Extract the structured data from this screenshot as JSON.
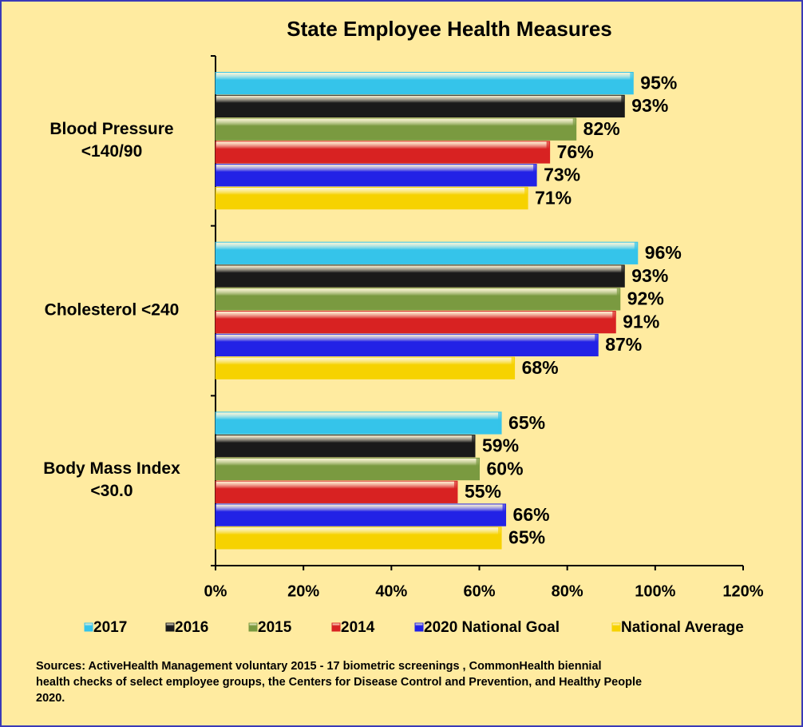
{
  "chart_data": {
    "type": "bar",
    "orientation": "horizontal",
    "title": "State Employee  Health Measures",
    "categories": [
      [
        "Blood Pressure",
        "<140/90"
      ],
      [
        "Cholesterol  <240"
      ],
      [
        "Body Mass Index",
        "<30.0"
      ]
    ],
    "series": [
      {
        "name": "2017",
        "color": "#35c4ea",
        "values": [
          95,
          96,
          65
        ],
        "value_labels": [
          "95%",
          "96%",
          "65%"
        ]
      },
      {
        "name": "2016",
        "color": "#1a1a1a",
        "values": [
          93,
          93,
          59
        ],
        "value_labels": [
          "93%",
          "93%",
          "59%"
        ]
      },
      {
        "name": "2015",
        "color": "#7a9a40",
        "values": [
          82,
          92,
          60
        ],
        "value_labels": [
          "82%",
          "92%",
          "60%"
        ]
      },
      {
        "name": "2014",
        "color": "#d82222",
        "values": [
          76,
          91,
          55
        ],
        "value_labels": [
          "76%",
          "91%",
          "55%"
        ]
      },
      {
        "name": "2020 National Goal",
        "color": "#2222e6",
        "values": [
          73,
          87,
          66
        ],
        "value_labels": [
          "73%",
          "87%",
          "66%"
        ]
      },
      {
        "name": "National Average",
        "color": "#f6d200",
        "values": [
          71,
          68,
          65
        ],
        "value_labels": [
          "71%",
          "68%",
          "65%"
        ]
      }
    ],
    "xlim": [
      0,
      120
    ],
    "xticks": [
      {
        "value": 0,
        "label": "0%"
      },
      {
        "value": 20,
        "label": "20%"
      },
      {
        "value": 40,
        "label": "40%"
      },
      {
        "value": 60,
        "label": "60%"
      },
      {
        "value": 80,
        "label": "80%"
      },
      {
        "value": 100,
        "label": "100%"
      },
      {
        "value": 120,
        "label": "120%"
      }
    ],
    "grid": false,
    "legend": "bottom",
    "source": [
      "Sources:  ActiveHealth Management voluntary 2015 - 17 biometric screenings , CommonHealth biennial",
      "health checks of select employee groups, the Centers for Disease Control and Prevention, and Healthy People",
      "2020."
    ]
  }
}
